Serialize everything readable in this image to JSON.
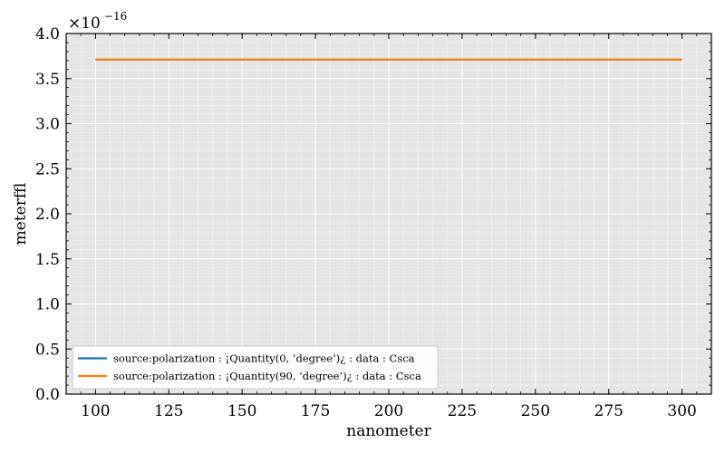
{
  "chart_data": {
    "type": "line",
    "title": "",
    "xlabel": "nanometer",
    "ylabel": "meterffl",
    "y_multiplier": {
      "base": "×10",
      "exponent": "−16"
    },
    "xlim": [
      90,
      310
    ],
    "ylim": [
      0.0,
      4.0
    ],
    "x_ticks": [
      100,
      125,
      150,
      175,
      200,
      225,
      250,
      275,
      300
    ],
    "x_tick_labels": [
      "100",
      "125",
      "150",
      "175",
      "200",
      "225",
      "250",
      "275",
      "300"
    ],
    "y_ticks": [
      0.0,
      0.5,
      1.0,
      1.5,
      2.0,
      2.5,
      3.0,
      3.5,
      4.0
    ],
    "y_tick_labels": [
      "0.0",
      "0.5",
      "1.0",
      "1.5",
      "2.0",
      "2.5",
      "3.0",
      "3.5",
      "4.0"
    ],
    "grid": true,
    "legend_position": "lower-left",
    "background_color": "#e5e5e5",
    "series": [
      {
        "name": "source:polarization : ¡Quantity(0, ’degree’)¿ : data : Csca",
        "color": "#1f77b4",
        "x": [
          100,
          300
        ],
        "y": [
          3.71,
          3.71
        ]
      },
      {
        "name": "source:polarization : ¡Quantity(90, ’degree’)¿ : data : Csca",
        "color": "#ff7f0e",
        "x": [
          100,
          300
        ],
        "y": [
          3.71,
          3.71
        ]
      }
    ]
  }
}
